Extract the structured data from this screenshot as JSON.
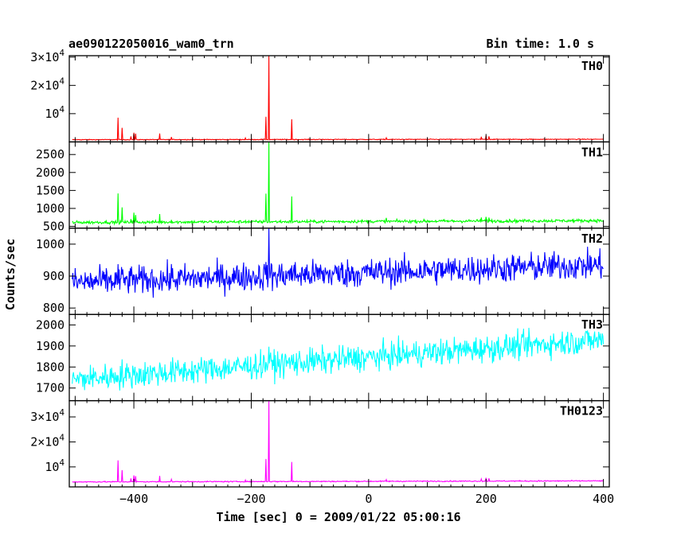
{
  "title_left": "ae090122050016_wam0_trn",
  "title_right": "Bin time: 1.0 s",
  "ylabel": "Counts/sec",
  "xlabel": "Time [sec] 0 = 2009/01/22 05:00:16",
  "chart_data": {
    "type": "line",
    "xlim": [
      -510,
      410
    ],
    "x_ticks": [
      -400,
      -200,
      0,
      200,
      400
    ],
    "x_tick_labels": [
      "−400",
      "−200",
      "0",
      "200",
      "400"
    ],
    "spikes": [
      {
        "t": -170,
        "amp": 1.0
      },
      {
        "t": -427,
        "amp": 0.26
      },
      {
        "t": -175,
        "amp": 0.27
      },
      {
        "t": -131,
        "amp": 0.24
      },
      {
        "t": -420,
        "amp": 0.14
      },
      {
        "t": -400,
        "amp": 0.08
      },
      {
        "t": -397,
        "amp": 0.07
      },
      {
        "t": -356,
        "amp": 0.07
      },
      {
        "t": -405,
        "amp": 0.04
      },
      {
        "t": -336,
        "amp": 0.03
      },
      {
        "t": 200,
        "amp": 0.04
      },
      {
        "t": 192,
        "amp": 0.03
      },
      {
        "t": 205,
        "amp": 0.035
      },
      {
        "t": 30,
        "amp": 0.02
      },
      {
        "t": -210,
        "amp": 0.02
      }
    ],
    "panels": [
      {
        "name": "TH0",
        "color": "#ff0000",
        "ylim": [
          0,
          30500
        ],
        "ticks": [
          {
            "v": 10000,
            "base": "",
            "exp": "4"
          },
          {
            "v": 20000,
            "base": "2×",
            "exp": "4"
          },
          {
            "v": 30000,
            "base": "3×",
            "exp": "4"
          }
        ],
        "baseline": 800,
        "trend": 150,
        "noise": 90,
        "spike_scale": 30000
      },
      {
        "name": "TH1",
        "color": "#00ff00",
        "ylim": [
          450,
          2850
        ],
        "ticks": [
          {
            "v": 500,
            "label": "500"
          },
          {
            "v": 1000,
            "label": "1000"
          },
          {
            "v": 1500,
            "label": "1500"
          },
          {
            "v": 2000,
            "label": "2000"
          },
          {
            "v": 2500,
            "label": "2500"
          }
        ],
        "baseline": 610,
        "trend": 50,
        "noise": 30,
        "spike_scale": 3000
      },
      {
        "name": "TH2",
        "color": "#0000ff",
        "ylim": [
          780,
          1050
        ],
        "ticks": [
          {
            "v": 800,
            "label": "800"
          },
          {
            "v": 900,
            "label": "900"
          },
          {
            "v": 1000,
            "label": "1000"
          }
        ],
        "baseline": 880,
        "trend": 55,
        "noise": 32,
        "spike_scale": 200
      },
      {
        "name": "TH3",
        "color": "#00ffff",
        "ylim": [
          1640,
          2050
        ],
        "ticks": [
          {
            "v": 1700,
            "label": "1700"
          },
          {
            "v": 1800,
            "label": "1800"
          },
          {
            "v": 1900,
            "label": "1900"
          },
          {
            "v": 2000,
            "label": "2000"
          }
        ],
        "baseline": 1740,
        "trend": 190,
        "noise": 45,
        "spike_scale": 120
      },
      {
        "name": "TH0123",
        "color": "#ff00ff",
        "ylim": [
          2000,
          36500
        ],
        "ticks": [
          {
            "v": 10000,
            "base": "",
            "exp": "4"
          },
          {
            "v": 20000,
            "base": "2×",
            "exp": "4"
          },
          {
            "v": 30000,
            "base": "3×",
            "exp": "4"
          }
        ],
        "baseline": 4000,
        "trend": 400,
        "noise": 150,
        "spike_scale": 33000
      }
    ]
  }
}
